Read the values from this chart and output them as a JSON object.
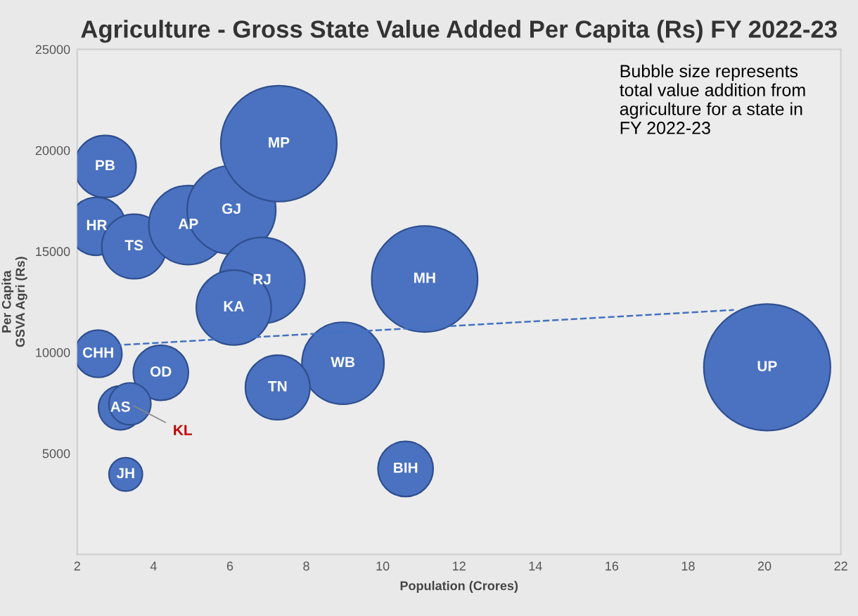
{
  "chart_data": {
    "type": "bubble",
    "title": "Agriculture - Gross State Value Added Per Capita (Rs) FY 2022-23",
    "xlabel": "Population (Crores)",
    "ylabel": "Per Capita\nGSVA Agri (Rs)",
    "xlim": [
      2,
      22
    ],
    "xticks": [
      2,
      4,
      6,
      8,
      10,
      12,
      14,
      16,
      18,
      20,
      22
    ],
    "ylim": [
      0,
      25000
    ],
    "yticks": [
      5000,
      10000,
      15000,
      20000,
      25000
    ],
    "grid": false,
    "legend": false,
    "series": [
      {
        "name": "PB",
        "color": "#4a72c0",
        "x": [
          2.73
        ],
        "values": [
          19200
        ],
        "sizes": [
          0.24
        ]
      },
      {
        "name": "HR",
        "color": "#4a72c0",
        "x": [
          2.51
        ],
        "values": [
          16240
        ],
        "sizes": [
          0.21
        ]
      },
      {
        "name": "TS",
        "color": "#4a72c0",
        "x": [
          3.49
        ],
        "values": [
          15240
        ],
        "sizes": [
          0.26
        ]
      },
      {
        "name": "AP",
        "color": "#4a72c0",
        "x": [
          4.91
        ],
        "values": [
          16300
        ],
        "sizes": [
          0.39
        ]
      },
      {
        "name": "GJ",
        "color": "#4a72c0",
        "x": [
          6.04
        ],
        "values": [
          17050
        ],
        "sizes": [
          0.49
        ]
      },
      {
        "name": "MP",
        "color": "#4a72c0",
        "x": [
          7.28
        ],
        "values": [
          20330
        ],
        "sizes": [
          0.84
        ]
      },
      {
        "name": "RJ",
        "color": "#4a72c0",
        "x": [
          6.84
        ],
        "values": [
          13560
        ],
        "sizes": [
          0.46
        ]
      },
      {
        "name": "KA",
        "color": "#4a72c0",
        "x": [
          6.1
        ],
        "values": [
          12220
        ],
        "sizes": [
          0.35
        ]
      },
      {
        "name": "CHH",
        "color": "#4a72c0",
        "x": [
          2.55
        ],
        "values": [
          9930
        ],
        "sizes": [
          0.14
        ]
      },
      {
        "name": "OD",
        "color": "#4a72c0",
        "x": [
          4.19
        ],
        "values": [
          8990
        ],
        "sizes": [
          0.19
        ]
      },
      {
        "name": "MH",
        "color": "#4a72c0",
        "x": [
          11.1
        ],
        "values": [
          13630
        ],
        "sizes": [
          0.7
        ]
      },
      {
        "name": "WB",
        "color": "#4a72c0",
        "x": [
          8.96
        ],
        "values": [
          9460
        ],
        "sizes": [
          0.42
        ]
      },
      {
        "name": "TN",
        "color": "#4a72c0",
        "x": [
          7.25
        ],
        "values": [
          8260
        ],
        "sizes": [
          0.26
        ]
      },
      {
        "name": "UP",
        "color": "#4a72c0",
        "x": [
          20.07
        ],
        "values": [
          9260
        ],
        "sizes": [
          1
        ]
      },
      {
        "name": "AS",
        "color": "#4a72c0",
        "x": [
          3.13
        ],
        "values": [
          7250
        ],
        "sizes": [
          0.12
        ]
      },
      {
        "color": "#4a72c0",
        "x": [
          3.38
        ],
        "values": [
          7450
        ],
        "sizes": [
          0.11
        ]
      },
      {
        "name": "JH",
        "color": "#4a72c0",
        "x": [
          3.27
        ],
        "values": [
          3960
        ],
        "sizes": [
          0.07
        ]
      },
      {
        "name": "BIH",
        "color": "#4a72c0",
        "x": [
          10.6
        ],
        "values": [
          4230
        ],
        "sizes": [
          0.19
        ]
      },
      {
        "type": "line",
        "color": "#4472c4",
        "line_style": "dashed",
        "x": [
          2.5,
          19.2
        ],
        "values": [
          10300,
          12100
        ]
      }
    ],
    "annotations": [
      {
        "text": "KL",
        "x": 3.38,
        "y": 7450
      },
      "Bubble size represents\ntotal value addition from\nagriculture for a state in\nFY 2022-23"
    ]
  }
}
